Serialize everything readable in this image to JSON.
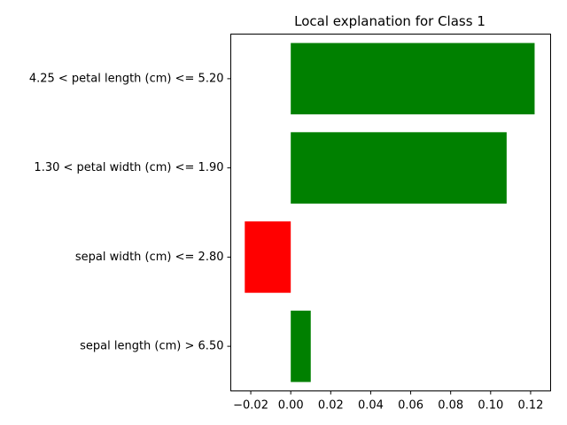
{
  "chart_data": {
    "type": "bar",
    "orientation": "horizontal",
    "title": "Local explanation for Class 1",
    "xlabel": "",
    "ylabel": "",
    "categories": [
      "4.25 < petal length (cm) <= 5.20",
      "1.30 < petal width (cm) <= 1.90",
      "sepal width (cm) <= 2.80",
      "sepal length (cm) > 6.50"
    ],
    "values": [
      0.122,
      0.108,
      -0.023,
      0.01
    ],
    "bar_colors": [
      "#008000",
      "#008000",
      "#ff0000",
      "#008000"
    ],
    "xlim": [
      -0.03,
      0.13
    ],
    "xticks": [
      -0.02,
      0.0,
      0.02,
      0.04,
      0.06,
      0.08,
      0.1,
      0.12
    ],
    "xtick_labels": [
      "−0.02",
      "0.00",
      "0.02",
      "0.04",
      "0.06",
      "0.08",
      "0.10",
      "0.12"
    ],
    "grid": false,
    "legend": "none"
  }
}
